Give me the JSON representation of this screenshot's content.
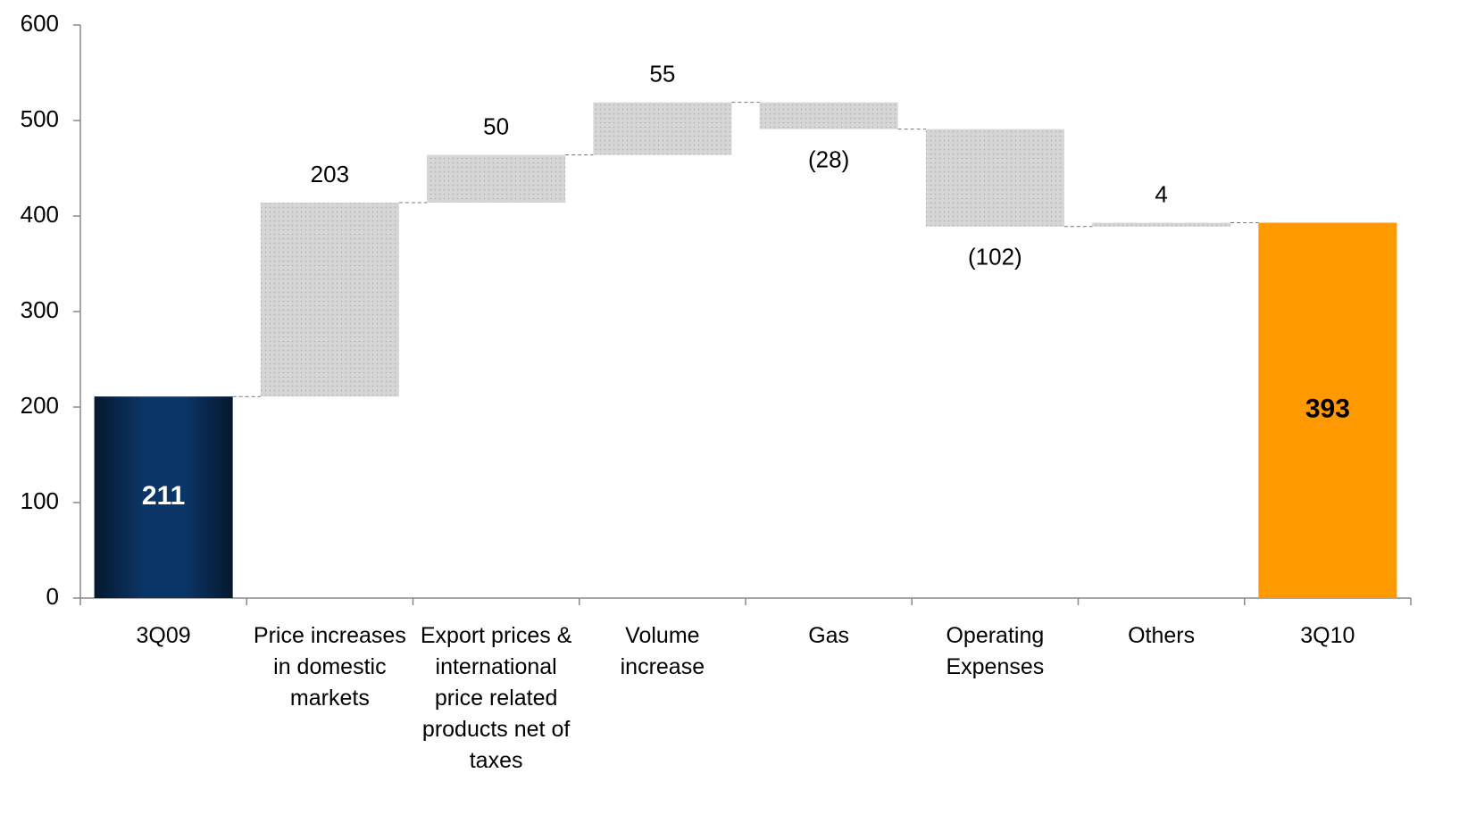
{
  "chart_data": {
    "type": "waterfall",
    "categories": [
      "3Q09",
      "Price increases in domestic markets",
      "Export prices & international price related products net of taxes",
      "Volume increase",
      "Gas",
      "Operating Expenses",
      "Others",
      "3Q10"
    ],
    "values": [
      211,
      203,
      50,
      55,
      -28,
      -102,
      4,
      393
    ],
    "value_labels": [
      "211",
      "203",
      "50",
      "55",
      "(28)",
      "(102)",
      "4",
      "393"
    ],
    "measure": [
      "absolute",
      "relative",
      "relative",
      "relative",
      "relative",
      "relative",
      "relative",
      "total"
    ],
    "colors": [
      "#0b3566",
      "#d6d6d6",
      "#d6d6d6",
      "#d6d6d6",
      "#d6d6d6",
      "#d6d6d6",
      "#d6d6d6",
      "#ff9900"
    ],
    "ylim": [
      0,
      600
    ],
    "yticks": [
      0,
      100,
      200,
      300,
      400,
      500,
      600
    ],
    "grid": false
  }
}
